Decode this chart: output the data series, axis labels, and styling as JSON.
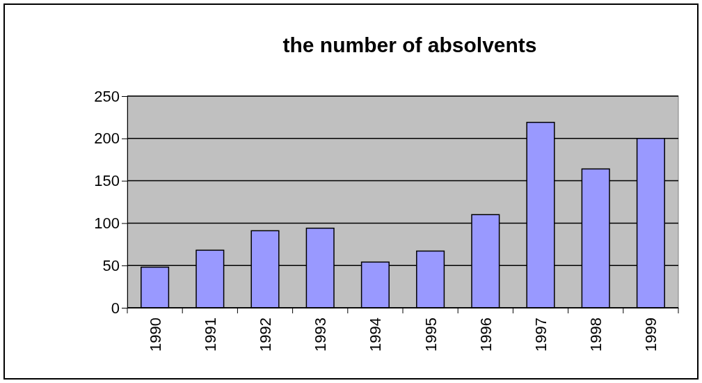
{
  "chart_data": {
    "type": "bar",
    "title": "the number of absolvents",
    "categories": [
      "1990",
      "1991",
      "1992",
      "1993",
      "1994",
      "1995",
      "1996",
      "1997",
      "1998",
      "1999"
    ],
    "values": [
      48,
      68,
      91,
      94,
      54,
      67,
      110,
      219,
      164,
      200
    ],
    "color": "#9999ff",
    "ylim": [
      0,
      250
    ],
    "yticks": [
      0,
      50,
      100,
      150,
      200,
      250
    ],
    "grid": "y"
  }
}
